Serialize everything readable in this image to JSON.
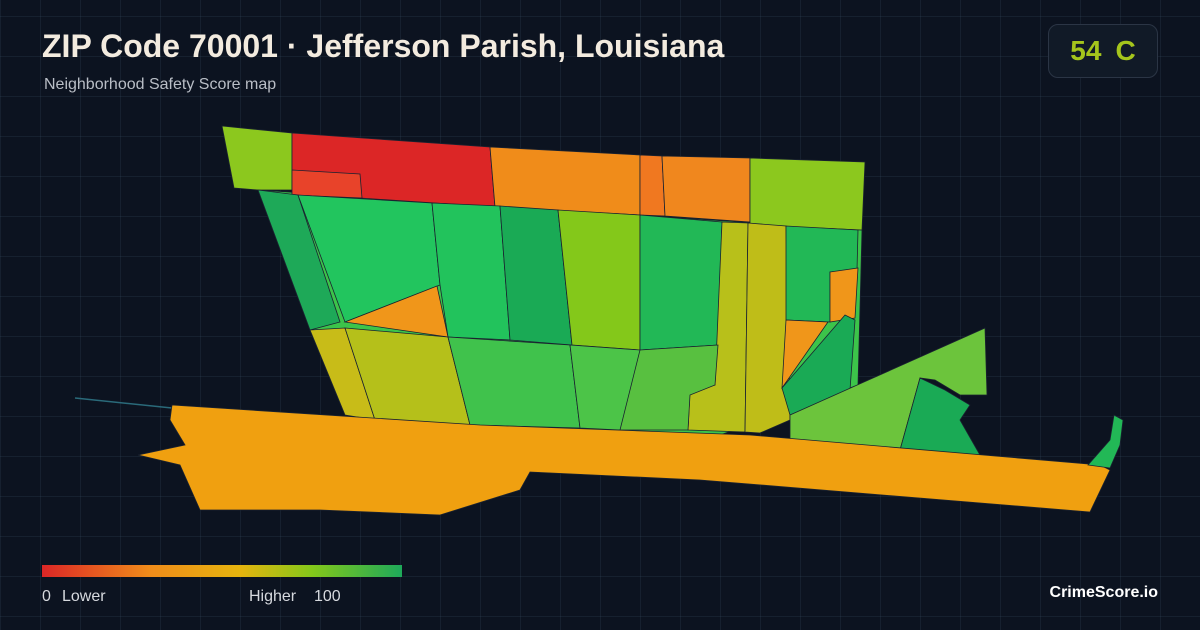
{
  "header": {
    "title": "ZIP Code 70001 · Jefferson Parish, Louisiana",
    "subtitle": "Neighborhood Safety Score map"
  },
  "score": {
    "value": 54,
    "grade": "C"
  },
  "legend": {
    "min": 0,
    "min_label": "Lower",
    "max_label": "Higher",
    "max": 100
  },
  "brand": "CrimeScore.io"
}
